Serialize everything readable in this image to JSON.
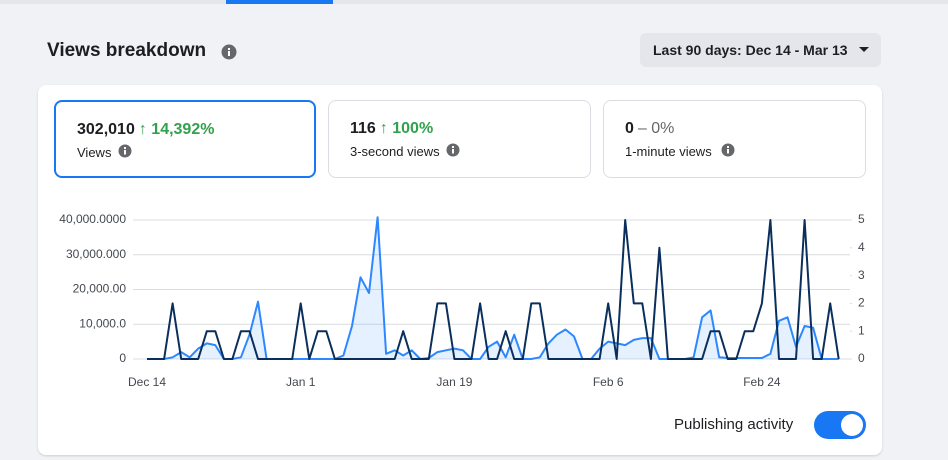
{
  "header": {
    "title": "Views breakdown",
    "date_range": "Last 90 days: Dec 14 - Mar 13"
  },
  "metrics": [
    {
      "value": "302,010",
      "change": "↑ 14,392%",
      "label": "Views"
    },
    {
      "value": "116",
      "change": "↑ 100%",
      "label": "3-second views"
    },
    {
      "value": "0",
      "change": "– 0%",
      "label": "1-minute views"
    }
  ],
  "chart_data": {
    "type": "line",
    "categories": [
      "Dec 14",
      null,
      null,
      null,
      null,
      null,
      null,
      null,
      null,
      null,
      null,
      null,
      null,
      null,
      null,
      null,
      null,
      null,
      "Jan 1",
      null,
      null,
      null,
      null,
      null,
      null,
      null,
      null,
      null,
      null,
      null,
      null,
      null,
      null,
      null,
      null,
      null,
      "Jan 19",
      null,
      null,
      null,
      null,
      null,
      null,
      null,
      null,
      null,
      null,
      null,
      null,
      null,
      null,
      null,
      null,
      null,
      "Feb 6",
      null,
      null,
      null,
      null,
      null,
      null,
      null,
      null,
      null,
      null,
      null,
      null,
      null,
      null,
      null,
      null,
      null,
      "Feb 24",
      null,
      null,
      null,
      null,
      null,
      null,
      null,
      null,
      null
    ],
    "series": [
      {
        "color": "#2d88ff",
        "values": [
          0,
          0,
          0,
          500,
          2000,
          500,
          3000,
          4500,
          4000,
          0,
          0,
          500,
          7000,
          16500,
          0,
          0,
          0,
          0,
          0,
          0,
          0,
          0,
          0,
          1000,
          9500,
          23500,
          19000,
          40800,
          1500,
          2500,
          1000,
          2500,
          0,
          300,
          2000,
          2500,
          3000,
          2500,
          0,
          0,
          3500,
          5000,
          500,
          7000,
          0,
          0,
          500,
          4500,
          7000,
          8500,
          6500,
          0,
          0,
          3000,
          5000,
          4500,
          4000,
          5500,
          6000,
          6000,
          0,
          0,
          0,
          0,
          500,
          12000,
          14000,
          500,
          300,
          300,
          300,
          300,
          300,
          1500,
          11000,
          12000,
          3500,
          9500,
          9000,
          0,
          0,
          0
        ]
      },
      {
        "color": "#0a2f5c",
        "axis": "y2",
        "values": [
          0,
          0,
          0,
          2,
          0,
          0,
          0,
          1,
          1,
          0,
          0,
          1,
          1,
          0,
          0,
          0,
          0,
          0,
          2,
          0,
          1,
          1,
          0,
          0,
          0,
          0,
          0,
          0,
          0,
          0,
          1,
          0,
          0,
          0,
          2,
          2,
          0,
          0,
          0,
          2,
          0,
          0,
          1,
          0,
          0,
          2,
          2,
          0,
          0,
          0,
          0,
          0,
          0,
          0,
          2,
          0,
          5,
          2,
          2,
          0,
          4,
          0,
          0,
          0,
          0,
          0,
          1,
          1,
          0,
          0,
          1,
          1,
          2,
          5,
          0,
          0,
          0,
          5,
          0,
          0,
          2,
          0
        ]
      }
    ],
    "ylim": [
      0,
      40000
    ],
    "yticks": [
      0,
      {
        "value": 10000,
        "label": "10,000.0"
      },
      {
        "value": 20000,
        "label": "20,000.00"
      },
      {
        "value": 30000,
        "label": "30,000.000"
      },
      {
        "value": 40000,
        "label": "40,000.0000"
      }
    ],
    "y2lim": [
      0,
      5
    ],
    "y2ticks": [
      0,
      1,
      2,
      3,
      4,
      5
    ],
    "grid": true
  },
  "toggle": {
    "label": "Publishing activity",
    "on": true
  }
}
